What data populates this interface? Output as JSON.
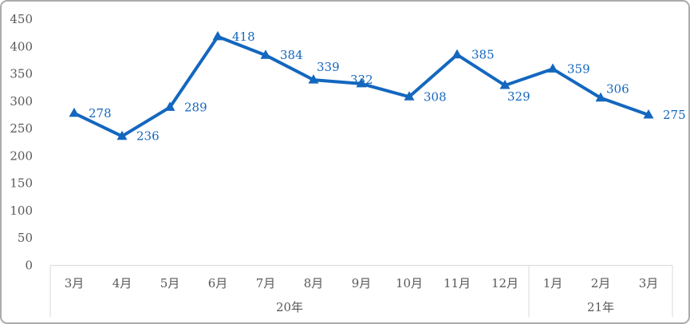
{
  "chart_data": {
    "type": "line",
    "title": "",
    "xlabel": "",
    "ylabel": "",
    "categories": [
      "3月",
      "4月",
      "5月",
      "6月",
      "7月",
      "8月",
      "9月",
      "10月",
      "11月",
      "12月",
      "1月",
      "2月",
      "3月"
    ],
    "values": [
      278,
      236,
      289,
      418,
      384,
      339,
      332,
      308,
      385,
      329,
      359,
      306,
      275
    ],
    "year_groups": [
      {
        "label": "20年",
        "start": 0,
        "end": 9
      },
      {
        "label": "21年",
        "start": 10,
        "end": 12
      }
    ],
    "y_ticks": [
      0,
      50,
      100,
      150,
      200,
      250,
      300,
      350,
      400,
      450
    ],
    "ylim": [
      0,
      450
    ],
    "grid": false,
    "legend": false,
    "marker": "triangle-up",
    "data_labels": true,
    "data_label_position": "right"
  },
  "colors": {
    "series": "#1467be",
    "axis_text": "#595959",
    "axis_line": "#d9d9d9",
    "border": "#ababab",
    "background": "#ffffff"
  }
}
